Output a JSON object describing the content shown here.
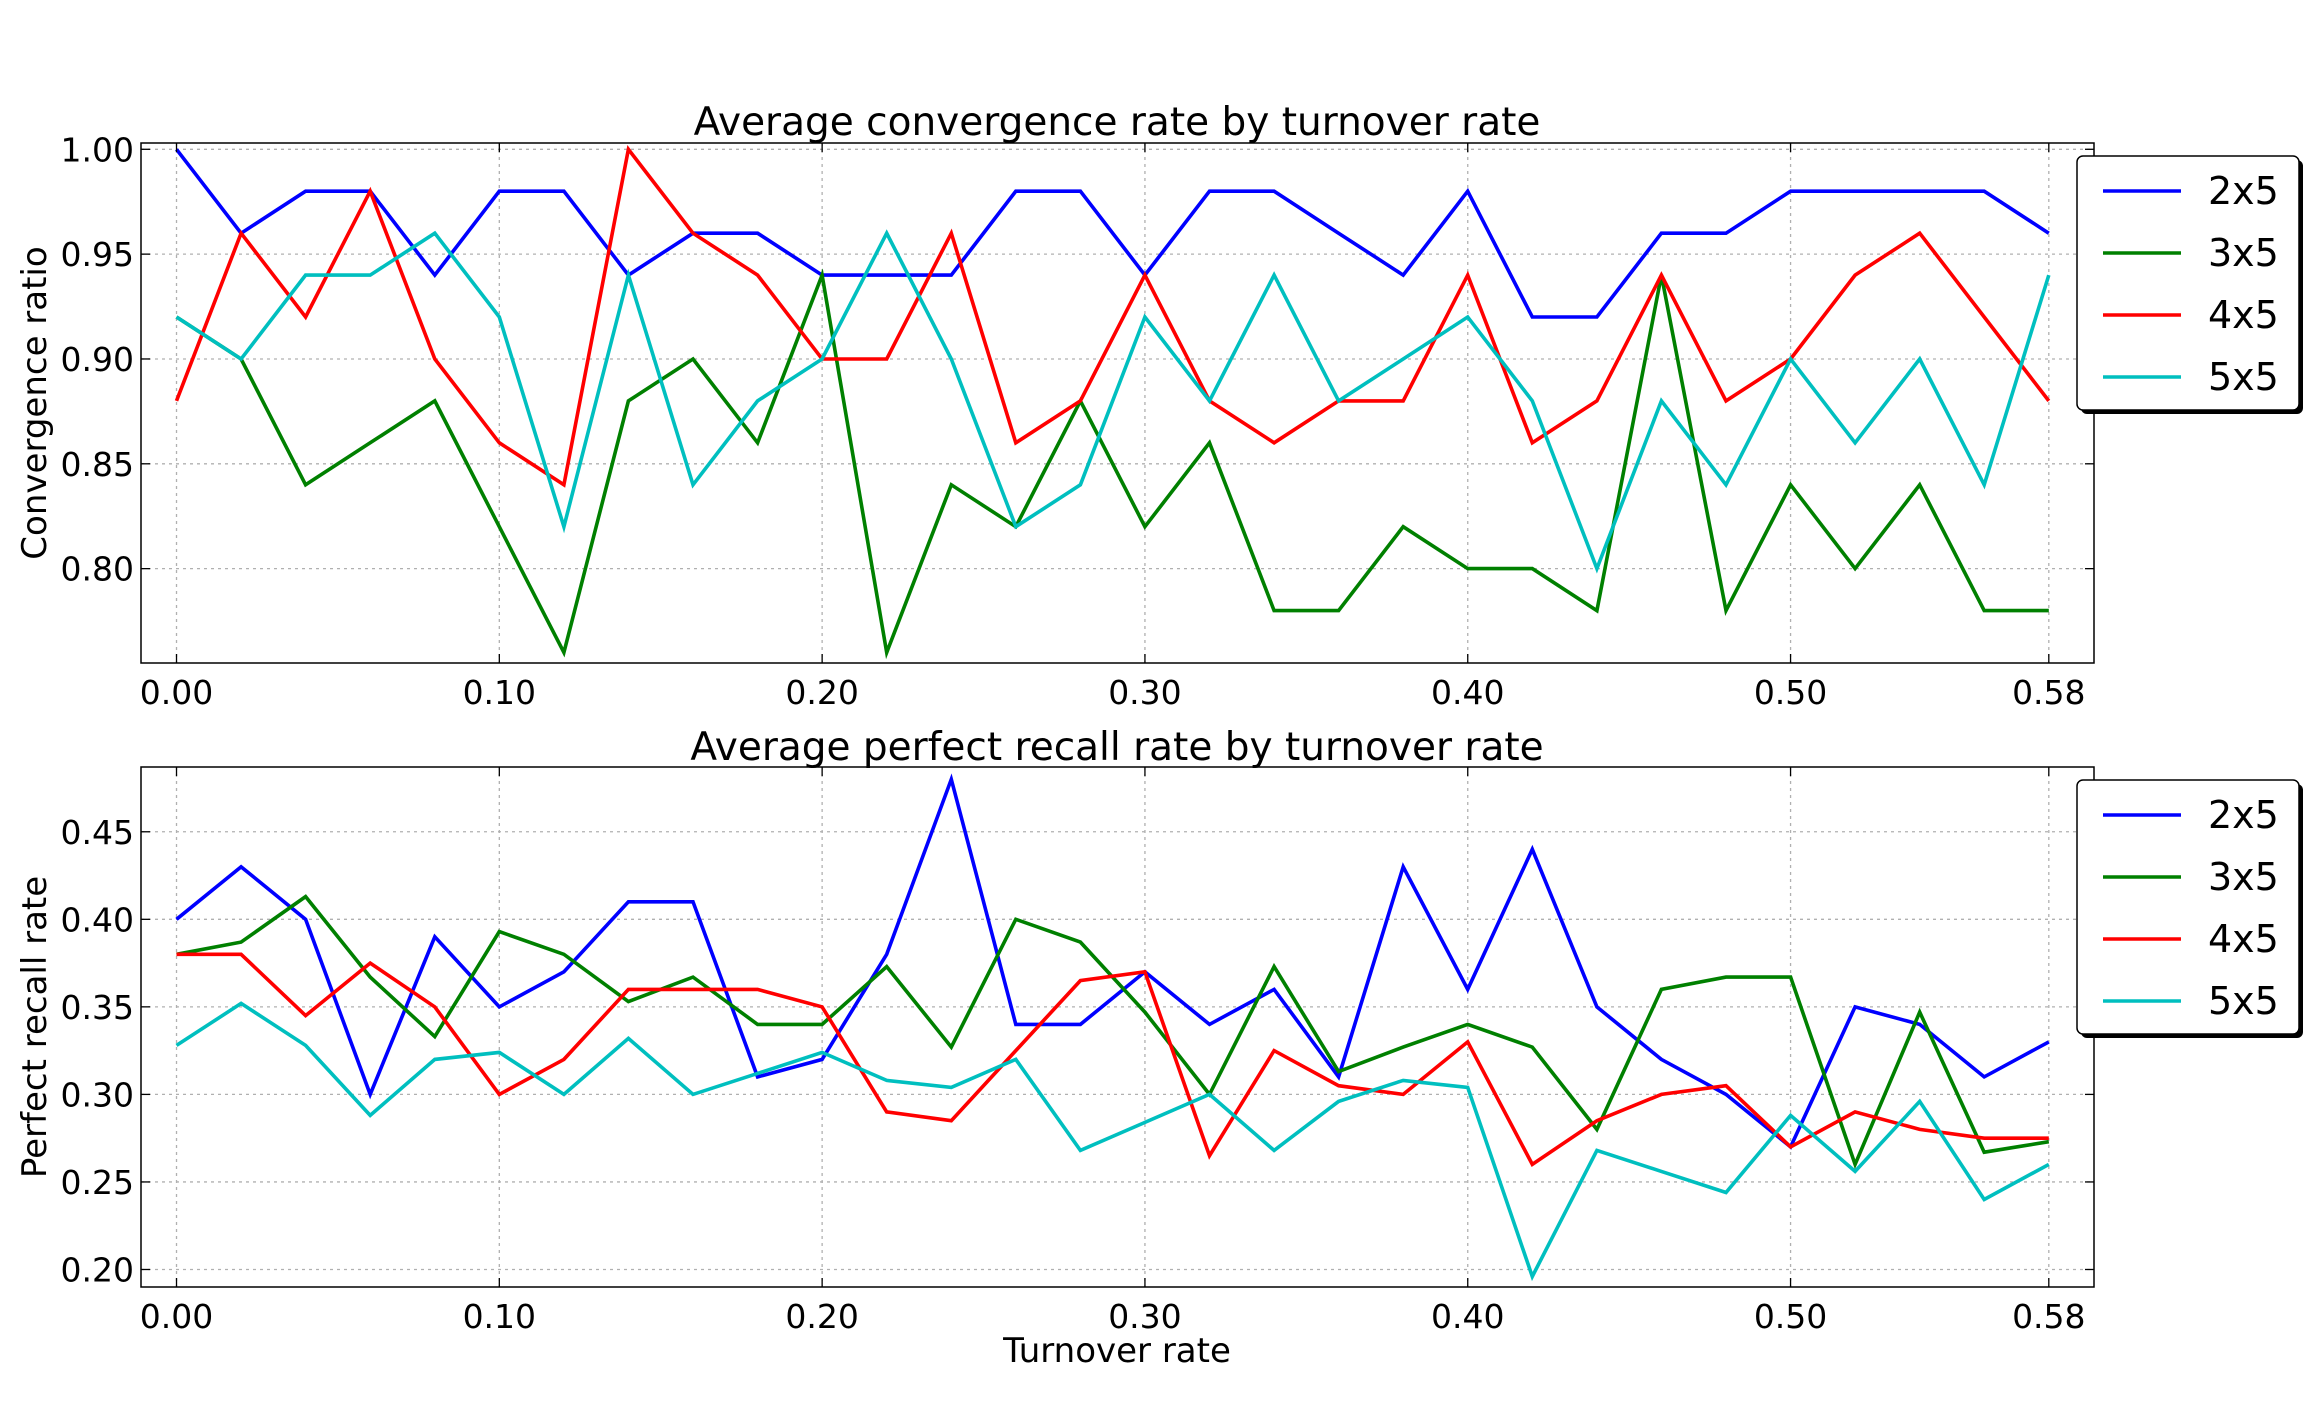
{
  "colors": {
    "2x5": "#0000ff",
    "3x5": "#008000",
    "4x5": "#ff0000",
    "5x5": "#00bfbf"
  },
  "chart_data": [
    {
      "type": "line",
      "title": "Average convergence rate by turnover rate",
      "xlabel": "",
      "ylabel": "Convergence ratio",
      "xlim": [
        -0.011,
        0.594
      ],
      "ylim": [
        0.755,
        1.003
      ],
      "xticks": [
        0.0,
        0.1,
        0.2,
        0.3,
        0.4,
        0.5,
        0.58
      ],
      "xtick_labels": [
        "0.00",
        "0.10",
        "0.20",
        "0.30",
        "0.40",
        "0.50",
        "0.58"
      ],
      "yticks": [
        0.8,
        0.85,
        0.9,
        0.95,
        1.0
      ],
      "ytick_labels": [
        "0.80",
        "0.85",
        "0.90",
        "0.95",
        "1.00"
      ],
      "grid": true,
      "legend_position": "right",
      "x": [
        0.0,
        0.02,
        0.04,
        0.06,
        0.08,
        0.1,
        0.12,
        0.14,
        0.16,
        0.18,
        0.2,
        0.22,
        0.24,
        0.26,
        0.28,
        0.3,
        0.32,
        0.34,
        0.36,
        0.38,
        0.4,
        0.42,
        0.44,
        0.46,
        0.48,
        0.5,
        0.52,
        0.54,
        0.56,
        0.58
      ],
      "series": [
        {
          "name": "2x5",
          "color": "#0000ff",
          "values": [
            1.0,
            0.96,
            0.98,
            0.98,
            0.94,
            0.98,
            0.98,
            0.94,
            0.96,
            0.96,
            0.94,
            0.94,
            0.94,
            0.98,
            0.98,
            0.94,
            0.98,
            0.98,
            0.96,
            0.94,
            0.98,
            0.92,
            0.92,
            0.96,
            0.96,
            0.98,
            0.98,
            0.98,
            0.98,
            0.96
          ]
        },
        {
          "name": "3x5",
          "color": "#008000",
          "values": [
            0.92,
            0.9,
            0.84,
            0.86,
            0.88,
            0.82,
            0.76,
            0.88,
            0.9,
            0.86,
            0.94,
            0.76,
            0.84,
            0.82,
            0.88,
            0.82,
            0.86,
            0.78,
            0.78,
            0.82,
            0.8,
            0.8,
            0.78,
            0.94,
            0.78,
            0.84,
            0.8,
            0.84,
            0.78,
            0.78
          ]
        },
        {
          "name": "4x5",
          "color": "#ff0000",
          "values": [
            0.88,
            0.96,
            0.92,
            0.98,
            0.9,
            0.86,
            0.84,
            1.0,
            0.96,
            0.94,
            0.9,
            0.9,
            0.96,
            0.86,
            0.88,
            0.94,
            0.88,
            0.86,
            0.88,
            0.88,
            0.94,
            0.86,
            0.88,
            0.94,
            0.88,
            0.9,
            0.94,
            0.96,
            0.92,
            0.88
          ]
        },
        {
          "name": "5x5",
          "color": "#00bfbf",
          "values": [
            0.92,
            0.9,
            0.94,
            0.94,
            0.96,
            0.92,
            0.82,
            0.94,
            0.84,
            0.88,
            0.9,
            0.96,
            0.9,
            0.82,
            0.84,
            0.92,
            0.88,
            0.94,
            0.88,
            0.9,
            0.92,
            0.88,
            0.8,
            0.88,
            0.84,
            0.9,
            0.86,
            0.9,
            0.84,
            0.94
          ]
        }
      ]
    },
    {
      "type": "line",
      "title": "Average perfect recall rate by turnover rate",
      "xlabel": "Turnover rate",
      "ylabel": "Perfect recall rate",
      "xlim": [
        -0.011,
        0.594
      ],
      "ylim": [
        0.19,
        0.487
      ],
      "xticks": [
        0.0,
        0.1,
        0.2,
        0.3,
        0.4,
        0.5,
        0.58
      ],
      "xtick_labels": [
        "0.00",
        "0.10",
        "0.20",
        "0.30",
        "0.40",
        "0.50",
        "0.58"
      ],
      "yticks": [
        0.2,
        0.25,
        0.3,
        0.35,
        0.4,
        0.45
      ],
      "ytick_labels": [
        "0.20",
        "0.25",
        "0.30",
        "0.35",
        "0.40",
        "0.45"
      ],
      "grid": true,
      "legend_position": "right",
      "x": [
        0.0,
        0.02,
        0.04,
        0.06,
        0.08,
        0.1,
        0.12,
        0.14,
        0.16,
        0.18,
        0.2,
        0.22,
        0.24,
        0.26,
        0.28,
        0.3,
        0.32,
        0.34,
        0.36,
        0.38,
        0.4,
        0.42,
        0.44,
        0.46,
        0.48,
        0.5,
        0.52,
        0.54,
        0.56,
        0.58
      ],
      "series": [
        {
          "name": "2x5",
          "color": "#0000ff",
          "values": [
            0.4,
            0.43,
            0.4,
            0.3,
            0.39,
            0.35,
            0.37,
            0.41,
            0.41,
            0.31,
            0.32,
            0.38,
            0.48,
            0.34,
            0.34,
            0.37,
            0.34,
            0.36,
            0.31,
            0.43,
            0.36,
            0.44,
            0.35,
            0.32,
            0.3,
            0.27,
            0.35,
            0.34,
            0.31,
            0.33
          ]
        },
        {
          "name": "3x5",
          "color": "#008000",
          "values": [
            0.38,
            0.387,
            0.413,
            0.367,
            0.333,
            0.393,
            0.38,
            0.353,
            0.367,
            0.34,
            0.34,
            0.373,
            0.327,
            0.4,
            0.387,
            0.347,
            0.3,
            0.373,
            0.313,
            0.327,
            0.34,
            0.327,
            0.28,
            0.36,
            0.367,
            0.367,
            0.26,
            0.347,
            0.267,
            0.273
          ]
        },
        {
          "name": "4x5",
          "color": "#ff0000",
          "values": [
            0.38,
            0.38,
            0.345,
            0.375,
            0.35,
            0.3,
            0.32,
            0.36,
            0.36,
            0.36,
            0.35,
            0.29,
            0.285,
            0.325,
            0.365,
            0.37,
            0.265,
            0.325,
            0.305,
            0.3,
            0.33,
            0.26,
            0.285,
            0.3,
            0.305,
            0.27,
            0.29,
            0.28,
            0.275,
            0.275
          ]
        },
        {
          "name": "5x5",
          "color": "#00bfbf",
          "values": [
            0.328,
            0.352,
            0.328,
            0.288,
            0.32,
            0.324,
            0.3,
            0.332,
            0.3,
            0.312,
            0.324,
            0.308,
            0.304,
            0.32,
            0.268,
            0.284,
            0.3,
            0.268,
            0.296,
            0.308,
            0.304,
            0.196,
            0.268,
            0.256,
            0.244,
            0.288,
            0.256,
            0.296,
            0.24,
            0.26
          ]
        }
      ]
    }
  ]
}
